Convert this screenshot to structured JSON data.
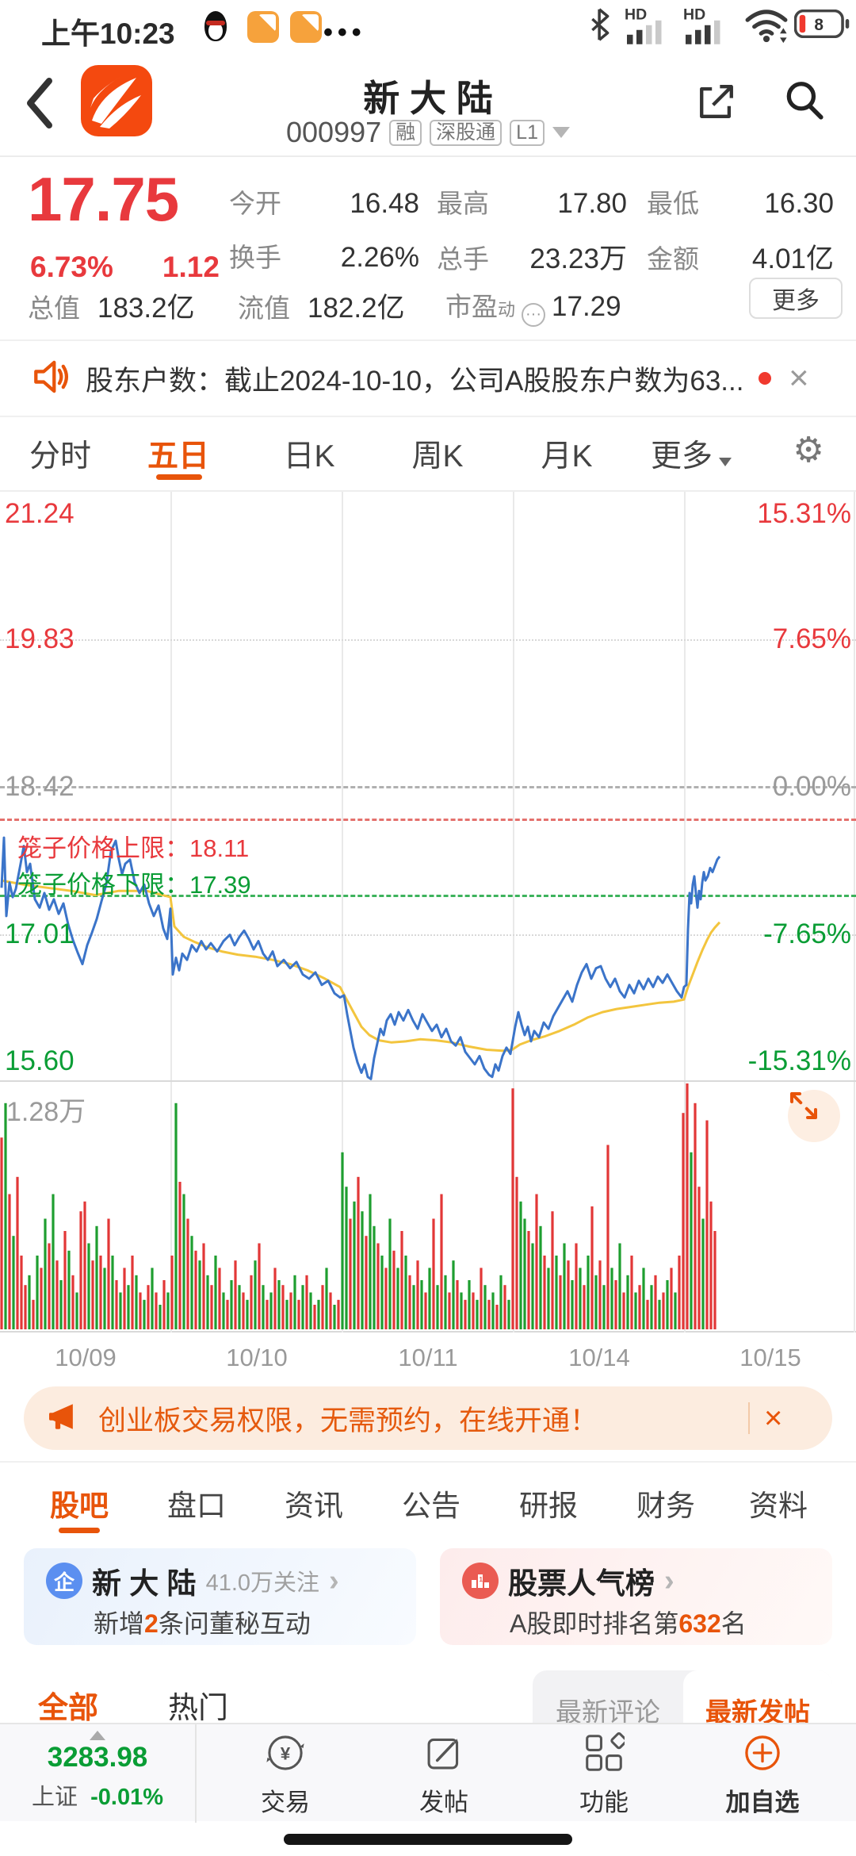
{
  "status_bar": {
    "time": "上午10:23",
    "battery_level": "8",
    "icons": [
      "qq-penguin-icon",
      "chat-icon",
      "chat-icon",
      "more-dots-icon",
      "bluetooth-icon",
      "hd-signal-icon",
      "hd-signal-icon",
      "wifi-icon",
      "battery-icon"
    ],
    "hd_label": "HD"
  },
  "header": {
    "title": "新 大 陆",
    "code": "000997",
    "badges": [
      "融",
      "深股通",
      "L1"
    ]
  },
  "quote": {
    "price": "17.75",
    "change_pct": "6.73%",
    "change": "1.12",
    "open": {
      "label": "今开",
      "value": "16.48"
    },
    "high": {
      "label": "最高",
      "value": "17.80"
    },
    "low": {
      "label": "最低",
      "value": "16.30"
    },
    "turnover": {
      "label": "换手",
      "value": "2.26%"
    },
    "volume": {
      "label": "总手",
      "value": "23.23万"
    },
    "amount": {
      "label": "金额",
      "value": "4.01亿"
    },
    "mktcap": {
      "label": "总值",
      "value": "183.2亿"
    },
    "floatcap": {
      "label": "流值",
      "value": "182.2亿"
    },
    "pe_label": "市盈",
    "pe_sup": "动",
    "pe_dots": "···",
    "pe_value": "17.29",
    "more_label": "更多"
  },
  "notice": {
    "text": "股东户数：截止2024-10-10，公司A股股东户数为63...",
    "close_glyph": "×"
  },
  "period_tabs": {
    "items": [
      "分时",
      "五日",
      "日K",
      "周K",
      "月K"
    ],
    "more": "更多",
    "active": "五日"
  },
  "chart_data": {
    "type": "line",
    "title": "五日分时走势",
    "y_axis_left": [
      "21.24",
      "19.83",
      "18.42",
      "17.01",
      "15.60"
    ],
    "y_axis_right": [
      "15.31%",
      "7.65%",
      "0.00%",
      "-7.65%",
      "-15.31%"
    ],
    "ylim": [
      15.6,
      21.24
    ],
    "base_price": 18.42,
    "cage_upper_label": "笼子价格上限：18.11",
    "cage_lower_label": "笼子价格下限：17.39",
    "cage_upper": 18.11,
    "cage_lower": 17.39,
    "x_labels": [
      "10/09",
      "10/10",
      "10/11",
      "10/14",
      "10/15"
    ],
    "volume_max_label": "1.28万",
    "legend_position": "none",
    "grid": true,
    "series": [
      {
        "name": "avg",
        "color": "#f3c53e",
        "points": [
          [
            2,
            17.52
          ],
          [
            30,
            17.48
          ],
          [
            60,
            17.45
          ],
          [
            90,
            17.42
          ],
          [
            120,
            17.38
          ],
          [
            150,
            17.42
          ],
          [
            185,
            17.42
          ],
          [
            215,
            17.36
          ],
          [
            220,
            17.08
          ],
          [
            232,
            16.98
          ],
          [
            246,
            16.93
          ],
          [
            262,
            16.88
          ],
          [
            280,
            16.84
          ],
          [
            300,
            16.81
          ],
          [
            322,
            16.79
          ],
          [
            344,
            16.76
          ],
          [
            366,
            16.72
          ],
          [
            388,
            16.66
          ],
          [
            410,
            16.58
          ],
          [
            429,
            16.5
          ],
          [
            436,
            16.4
          ],
          [
            446,
            16.26
          ],
          [
            456,
            16.12
          ],
          [
            466,
            16.04
          ],
          [
            478,
            15.99
          ],
          [
            494,
            15.97
          ],
          [
            512,
            15.98
          ],
          [
            530,
            16.0
          ],
          [
            550,
            15.99
          ],
          [
            570,
            15.97
          ],
          [
            592,
            15.93
          ],
          [
            614,
            15.9
          ],
          [
            634,
            15.89
          ],
          [
            646,
            15.9
          ],
          [
            656,
            15.95
          ],
          [
            670,
            15.99
          ],
          [
            688,
            16.03
          ],
          [
            706,
            16.08
          ],
          [
            724,
            16.14
          ],
          [
            742,
            16.21
          ],
          [
            760,
            16.26
          ],
          [
            778,
            16.29
          ],
          [
            796,
            16.31
          ],
          [
            814,
            16.33
          ],
          [
            832,
            16.35
          ],
          [
            850,
            16.36
          ],
          [
            863,
            16.38
          ],
          [
            868,
            16.5
          ],
          [
            874,
            16.62
          ],
          [
            880,
            16.74
          ],
          [
            886,
            16.85
          ],
          [
            892,
            16.95
          ],
          [
            897,
            17.02
          ],
          [
            902,
            17.07
          ],
          [
            908,
            17.12
          ]
        ]
      },
      {
        "name": "price",
        "color": "#3b74c9",
        "points": [
          [
            2,
            17.45
          ],
          [
            5,
            17.93
          ],
          [
            8,
            17.18
          ],
          [
            12,
            17.5
          ],
          [
            16,
            17.36
          ],
          [
            20,
            17.44
          ],
          [
            26,
            17.68
          ],
          [
            30,
            17.85
          ],
          [
            34,
            17.6
          ],
          [
            38,
            17.68
          ],
          [
            44,
            17.34
          ],
          [
            50,
            17.26
          ],
          [
            56,
            17.4
          ],
          [
            62,
            17.24
          ],
          [
            68,
            17.34
          ],
          [
            74,
            17.2
          ],
          [
            80,
            17.3
          ],
          [
            86,
            17.1
          ],
          [
            92,
            16.95
          ],
          [
            98,
            16.83
          ],
          [
            104,
            16.72
          ],
          [
            110,
            16.9
          ],
          [
            116,
            17.02
          ],
          [
            122,
            17.15
          ],
          [
            128,
            17.32
          ],
          [
            134,
            17.48
          ],
          [
            140,
            17.8
          ],
          [
            146,
            17.9
          ],
          [
            150,
            17.72
          ],
          [
            154,
            17.58
          ],
          [
            158,
            17.68
          ],
          [
            164,
            17.72
          ],
          [
            170,
            17.5
          ],
          [
            176,
            17.4
          ],
          [
            182,
            17.48
          ],
          [
            188,
            17.3
          ],
          [
            194,
            17.18
          ],
          [
            200,
            17.28
          ],
          [
            206,
            17.06
          ],
          [
            211,
            16.96
          ],
          [
            215,
            17.25
          ],
          [
            218,
            16.62
          ],
          [
            222,
            16.78
          ],
          [
            226,
            16.66
          ],
          [
            230,
            16.82
          ],
          [
            236,
            16.76
          ],
          [
            242,
            16.9
          ],
          [
            248,
            16.84
          ],
          [
            254,
            16.94
          ],
          [
            260,
            16.86
          ],
          [
            266,
            16.92
          ],
          [
            274,
            16.84
          ],
          [
            282,
            16.94
          ],
          [
            290,
            17.0
          ],
          [
            296,
            16.9
          ],
          [
            302,
            16.98
          ],
          [
            308,
            17.04
          ],
          [
            314,
            16.96
          ],
          [
            320,
            16.86
          ],
          [
            326,
            16.94
          ],
          [
            332,
            16.82
          ],
          [
            338,
            16.76
          ],
          [
            344,
            16.84
          ],
          [
            350,
            16.7
          ],
          [
            358,
            16.76
          ],
          [
            366,
            16.68
          ],
          [
            374,
            16.74
          ],
          [
            382,
            16.62
          ],
          [
            390,
            16.58
          ],
          [
            398,
            16.64
          ],
          [
            406,
            16.52
          ],
          [
            414,
            16.56
          ],
          [
            422,
            16.44
          ],
          [
            429,
            16.4
          ],
          [
            434,
            16.42
          ],
          [
            438,
            16.24
          ],
          [
            442,
            16.08
          ],
          [
            446,
            15.92
          ],
          [
            451,
            15.78
          ],
          [
            456,
            15.68
          ],
          [
            460,
            15.76
          ],
          [
            464,
            15.64
          ],
          [
            468,
            15.62
          ],
          [
            472,
            15.82
          ],
          [
            476,
            15.96
          ],
          [
            480,
            16.1
          ],
          [
            484,
            16.04
          ],
          [
            488,
            16.18
          ],
          [
            493,
            16.24
          ],
          [
            498,
            16.14
          ],
          [
            503,
            16.26
          ],
          [
            509,
            16.18
          ],
          [
            515,
            16.28
          ],
          [
            521,
            16.18
          ],
          [
            527,
            16.1
          ],
          [
            533,
            16.24
          ],
          [
            539,
            16.16
          ],
          [
            545,
            16.08
          ],
          [
            551,
            16.14
          ],
          [
            557,
            16.02
          ],
          [
            563,
            16.1
          ],
          [
            569,
            15.98
          ],
          [
            575,
            15.94
          ],
          [
            581,
            16.02
          ],
          [
            587,
            15.88
          ],
          [
            593,
            15.82
          ],
          [
            599,
            15.76
          ],
          [
            605,
            15.84
          ],
          [
            611,
            15.72
          ],
          [
            617,
            15.66
          ],
          [
            621,
            15.64
          ],
          [
            625,
            15.76
          ],
          [
            629,
            15.7
          ],
          [
            634,
            15.84
          ],
          [
            639,
            15.92
          ],
          [
            644,
            15.86
          ],
          [
            650,
            16.12
          ],
          [
            654,
            16.26
          ],
          [
            658,
            16.14
          ],
          [
            662,
            16.04
          ],
          [
            666,
            16.12
          ],
          [
            670,
            15.98
          ],
          [
            674,
            16.08
          ],
          [
            680,
            16.02
          ],
          [
            686,
            16.16
          ],
          [
            692,
            16.1
          ],
          [
            698,
            16.22
          ],
          [
            704,
            16.3
          ],
          [
            710,
            16.38
          ],
          [
            716,
            16.46
          ],
          [
            722,
            16.36
          ],
          [
            728,
            16.52
          ],
          [
            734,
            16.64
          ],
          [
            740,
            16.72
          ],
          [
            746,
            16.58
          ],
          [
            752,
            16.68
          ],
          [
            758,
            16.7
          ],
          [
            764,
            16.58
          ],
          [
            770,
            16.5
          ],
          [
            776,
            16.58
          ],
          [
            782,
            16.46
          ],
          [
            788,
            16.4
          ],
          [
            794,
            16.52
          ],
          [
            800,
            16.44
          ],
          [
            806,
            16.56
          ],
          [
            812,
            16.48
          ],
          [
            818,
            16.58
          ],
          [
            824,
            16.5
          ],
          [
            830,
            16.6
          ],
          [
            836,
            16.54
          ],
          [
            842,
            16.62
          ],
          [
            848,
            16.54
          ],
          [
            854,
            16.46
          ],
          [
            860,
            16.4
          ],
          [
            863,
            16.5
          ],
          [
            866,
            16.52
          ],
          [
            868,
            17.05
          ],
          [
            870,
            17.4
          ],
          [
            872,
            17.3
          ],
          [
            874,
            17.48
          ],
          [
            876,
            17.56
          ],
          [
            878,
            17.4
          ],
          [
            880,
            17.26
          ],
          [
            882,
            17.42
          ],
          [
            884,
            17.34
          ],
          [
            886,
            17.5
          ],
          [
            888,
            17.6
          ],
          [
            890,
            17.52
          ],
          [
            893,
            17.56
          ],
          [
            896,
            17.64
          ],
          [
            899,
            17.6
          ],
          [
            902,
            17.66
          ],
          [
            905,
            17.72
          ],
          [
            908,
            17.75
          ]
        ]
      }
    ],
    "volume": [
      0.78,
      -0.92,
      0.55,
      -0.38,
      0.62,
      0.3,
      0.18,
      -0.22,
      0.12,
      -0.3,
      0.25,
      -0.45,
      0.35,
      -0.55,
      0.28,
      -0.2,
      0.4,
      -0.32,
      0.22,
      -0.15,
      0.48,
      0.52,
      -0.35,
      0.28,
      -0.42,
      0.3,
      -0.25,
      0.45,
      -0.3,
      0.2,
      -0.15,
      0.25,
      -0.18,
      0.3,
      -0.22,
      0.15,
      -0.12,
      0.18,
      -0.25,
      0.15,
      -0.1,
      0.2,
      -0.15,
      0.3,
      -0.92,
      0.6,
      -0.55,
      0.45,
      -0.38,
      0.32,
      -0.28,
      0.35,
      -0.22,
      0.18,
      -0.3,
      0.25,
      -0.15,
      0.12,
      -0.2,
      0.28,
      -0.18,
      0.15,
      -0.12,
      0.22,
      -0.28,
      0.35,
      -0.18,
      0.12,
      -0.15,
      0.25,
      -0.2,
      0.18,
      -0.12,
      0.15,
      -0.22,
      0.12,
      -0.18,
      0.22,
      -0.15,
      0.1,
      -0.12,
      0.18,
      -0.25,
      0.15,
      -0.1,
      0.12,
      -0.72,
      -0.58,
      0.45,
      -0.52,
      0.62,
      -0.48,
      0.38,
      -0.55,
      -0.42,
      0.35,
      -0.3,
      0.25,
      -0.45,
      0.32,
      -0.25,
      0.4,
      -0.3,
      0.22,
      -0.18,
      0.28,
      -0.2,
      0.15,
      -0.25,
      0.45,
      -0.18,
      0.55,
      -0.22,
      0.15,
      -0.28,
      0.2,
      -0.15,
      0.12,
      -0.2,
      0.15,
      -0.12,
      0.25,
      -0.18,
      0.12,
      -0.15,
      0.1,
      -0.22,
      0.18,
      -0.12,
      0.98,
      0.62,
      -0.52,
      -0.45,
      0.4,
      -0.35,
      0.55,
      -0.42,
      0.3,
      -0.25,
      0.48,
      -0.3,
      0.22,
      -0.35,
      0.28,
      -0.2,
      0.35,
      -0.25,
      0.18,
      -0.3,
      0.5,
      -0.22,
      0.28,
      -0.18,
      0.75,
      -0.25,
      0.2,
      -0.35,
      0.15,
      -0.22,
      0.3,
      -0.15,
      0.18,
      -0.25,
      0.12,
      -0.18,
      0.22,
      -0.12,
      0.15,
      -0.2,
      0.25,
      -0.15,
      0.3,
      0.88,
      1.0,
      -0.72,
      0.92,
      0.58,
      -0.45,
      0.85,
      0.52,
      0.4
    ],
    "colors": {
      "up": "#e23737",
      "down": "#1e9e30"
    }
  },
  "banner": {
    "text": "创业板交易权限，无需预约，在线开通！",
    "close_glyph": "×"
  },
  "section_tabs": {
    "items": [
      "股吧",
      "盘口",
      "资讯",
      "公告",
      "研报",
      "财务",
      "资料"
    ],
    "active": "股吧"
  },
  "cards": {
    "company": {
      "icon_text": "企",
      "title": "新 大 陆",
      "followers": "41.0万关注",
      "chevron": "›",
      "sub_prefix": "新增",
      "sub_num": "2",
      "sub_suffix": "条问董秘互动"
    },
    "rank": {
      "title": "股票人气榜",
      "chevron": "›",
      "sub_prefix": "A股即时排名第",
      "sub_num": "632",
      "sub_suffix": "名"
    }
  },
  "filter": {
    "all": "全部",
    "hot": "热门",
    "latest_comment": "最新评论",
    "latest_post": "最新发帖"
  },
  "bottom_nav": {
    "index_value": "3283.98",
    "index_name": "上证",
    "index_change": "-0.01%",
    "items": [
      "交易",
      "发帖",
      "功能",
      "加自选"
    ],
    "trade_glyph": "¥"
  }
}
